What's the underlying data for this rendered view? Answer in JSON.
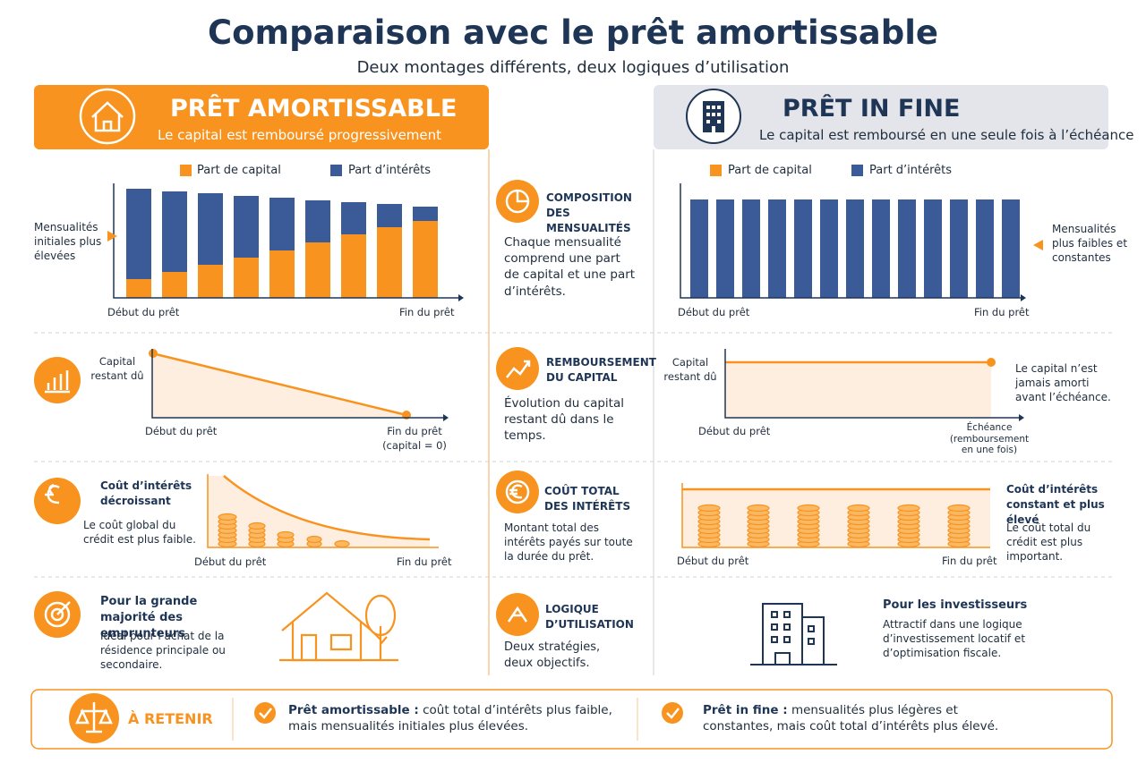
{
  "header": {
    "title": "Comparaison avec le prêt amortissable",
    "subtitle": "Deux montages différents, deux logiques d’utilisation"
  },
  "left": {
    "title": "PRÊT AMORTISSABLE",
    "subtitle": "Le capital est remboursé progressivement"
  },
  "right": {
    "title": "PRÊT IN FINE",
    "subtitle": "Le capital est remboursé en une seule fois à l’échéance"
  },
  "composition": {
    "title": "COMPOSITION DES MENSUALITÉS",
    "text": "Chaque mensualité comprend une part de capital et une part d’intérêts.",
    "left": {
      "legend": [
        "Part de capital",
        "Part d’intérêts"
      ],
      "note": "Mensualités initiales plus élevées",
      "start": "Début du prêt",
      "end": "Fin du prêt"
    },
    "right": {
      "legend": [
        "Part de capital",
        "Part d’intérêts"
      ],
      "note": "Mensualités plus faibles et constantes",
      "start": "Début du prêt",
      "end": "Fin du prêt"
    }
  },
  "repayment": {
    "title": "REMBOURSEMENT DU CAPITAL",
    "text": "Évolution du capital restant dû dans le temps.",
    "left": {
      "axis": "Capital restant dû",
      "start": "Début du prêt",
      "end": "Fin du prêt (capital = 0)"
    },
    "right": {
      "axis": "Capital restant dû",
      "start": "Début du prêt",
      "end": "Échéance (remboursement en une fois)",
      "note": "Le capital n’est jamais amorti avant l’échéance."
    }
  },
  "interest": {
    "title": "COÛT TOTAL DES INTÉRÊTS",
    "text": "Montant total des intérêts payés sur toute la durée du prêt.",
    "left": {
      "heading": "Coût d’intérêts décroissant",
      "text": "Le coût global du crédit est plus faible.",
      "start": "Début du prêt",
      "end": "Fin du prêt"
    },
    "right": {
      "heading": "Coût d’intérêts constant et plus élevé",
      "text": "Le coût total du crédit est plus important.",
      "start": "Début du prêt",
      "end": "Fin du prêt"
    }
  },
  "usage": {
    "title": "LOGIQUE D’UTILISATION",
    "text": "Deux stratégies, deux objectifs.",
    "left": {
      "heading": "Pour la grande majorité des emprunteurs",
      "text": "Idéal pour l’achat de la résidence principale ou secondaire."
    },
    "right": {
      "heading": "Pour les investisseurs",
      "text": "Attractif dans une logique d’investissement locatif et d’optimisation fiscale."
    }
  },
  "summary": {
    "title": "À RETENIR",
    "items": [
      {
        "label": "Prêt amortissable :",
        "text": "coût total d’intérêts plus faible, mais mensualités initiales plus élevées."
      },
      {
        "label": "Prêt in fine :",
        "text": "mensualités plus légères et constantes, mais coût total d’intérêts plus élevé."
      }
    ]
  }
}
